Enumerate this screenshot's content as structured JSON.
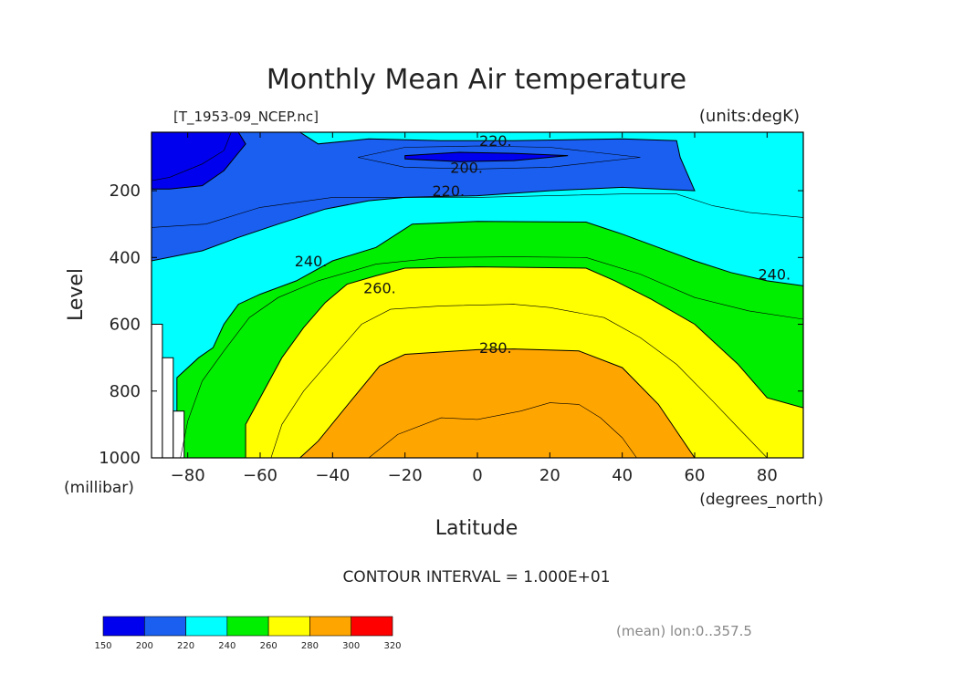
{
  "chart_data": {
    "type": "filled-contour",
    "title": "Monthly Mean Air temperature",
    "file_label": "[T_1953-09_NCEP.nc]",
    "units_label": "(units:degK)",
    "xlabel": "Latitude",
    "x_units": "(degrees_north)",
    "ylabel": "Level",
    "y_units": "(millibar)",
    "xlim": [
      -90,
      90
    ],
    "ylim": [
      1000,
      25
    ],
    "x_ticks": [
      -80,
      -60,
      -40,
      -20,
      0,
      20,
      40,
      60,
      80
    ],
    "x_tick_labels": [
      "−80",
      "−60",
      "−40",
      "−20",
      "0",
      "20",
      "40",
      "60",
      "80"
    ],
    "y_ticks": [
      200,
      400,
      600,
      800,
      1000
    ],
    "y_tick_labels": [
      "200",
      "400",
      "600",
      "800",
      "1000"
    ],
    "contour_interval_text": "CONTOUR INTERVAL = 1.000E+01",
    "footnote": "(mean) lon:0..357.5",
    "contour_labels": [
      {
        "text": "220.",
        "lat": 5,
        "level": 50
      },
      {
        "text": "200.",
        "lat": -3,
        "level": 130
      },
      {
        "text": "220.",
        "lat": -8,
        "level": 200
      },
      {
        "text": "240.",
        "lat": -46,
        "level": 410
      },
      {
        "text": "260.",
        "lat": -27,
        "level": 490
      },
      {
        "text": "280.",
        "lat": 5,
        "level": 670
      },
      {
        "text": "240.",
        "lat": 82,
        "level": 450
      }
    ],
    "colorbar": {
      "levels": [
        "150",
        "200",
        "220",
        "240",
        "260",
        "280",
        "300",
        "320"
      ],
      "colors": [
        "#0000ee",
        "#1a5ff0",
        "#00ffff",
        "#00ee00",
        "#ffff00",
        "#ffa500",
        "#ff0000"
      ]
    },
    "regions": [
      {
        "name": "orange-280-300",
        "color": "#ffa500",
        "outline": [
          [
            -49,
            1000
          ],
          [
            -44,
            950
          ],
          [
            -35,
            830
          ],
          [
            -27,
            725
          ],
          [
            -20,
            690
          ],
          [
            0,
            676
          ],
          [
            10,
            674
          ],
          [
            28,
            680
          ],
          [
            40,
            730
          ],
          [
            50,
            840
          ],
          [
            60,
            1000
          ]
        ]
      },
      {
        "name": "yellow-260-280",
        "color": "#ffff00",
        "outline": [
          [
            -64,
            1000
          ],
          [
            -64,
            900
          ],
          [
            -60,
            820
          ],
          [
            -54,
            700
          ],
          [
            -48,
            610
          ],
          [
            -42,
            535
          ],
          [
            -36,
            480
          ],
          [
            -28,
            455
          ],
          [
            -20,
            432
          ],
          [
            0,
            428
          ],
          [
            30,
            432
          ],
          [
            38,
            470
          ],
          [
            48,
            525
          ],
          [
            60,
            600
          ],
          [
            72,
            720
          ],
          [
            80,
            820
          ],
          [
            90,
            850
          ],
          [
            90,
            1000
          ]
        ]
      },
      {
        "name": "green-240-260",
        "color": "#00ee00",
        "outline": [
          [
            -83,
            1000
          ],
          [
            -83,
            760
          ],
          [
            -77,
            700
          ],
          [
            -73,
            670
          ],
          [
            -70,
            600
          ],
          [
            -66,
            540
          ],
          [
            -60,
            510
          ],
          [
            -50,
            470
          ],
          [
            -40,
            410
          ],
          [
            -28,
            370
          ],
          [
            -18,
            300
          ],
          [
            0,
            292
          ],
          [
            30,
            294
          ],
          [
            40,
            330
          ],
          [
            50,
            370
          ],
          [
            60,
            410
          ],
          [
            70,
            445
          ],
          [
            80,
            470
          ],
          [
            90,
            485
          ],
          [
            90,
            1000
          ]
        ]
      },
      {
        "name": "cyan-220-240",
        "color": "#00ffff",
        "outline": [
          [
            -90,
            25
          ],
          [
            90,
            25
          ],
          [
            90,
            1000
          ],
          [
            -90,
            1000
          ]
        ]
      },
      {
        "name": "blue-200-220",
        "color": "#1a5ff0",
        "outline": [
          [
            -90,
            25
          ],
          [
            -49,
            25
          ],
          [
            -44,
            60
          ],
          [
            -30,
            45
          ],
          [
            -10,
            50
          ],
          [
            10,
            50
          ],
          [
            40,
            45
          ],
          [
            55,
            50
          ],
          [
            56,
            100
          ],
          [
            60,
            200
          ],
          [
            40,
            190
          ],
          [
            20,
            200
          ],
          [
            0,
            215
          ],
          [
            -20,
            220
          ],
          [
            -30,
            230
          ],
          [
            -42,
            255
          ],
          [
            -55,
            300
          ],
          [
            -66,
            340
          ],
          [
            -76,
            380
          ],
          [
            -90,
            410
          ]
        ]
      },
      {
        "name": "deep-blue-below-200",
        "color": "#0000ee",
        "outline": [
          [
            -90,
            25
          ],
          [
            -66,
            25
          ],
          [
            -64,
            60
          ],
          [
            -70,
            140
          ],
          [
            -76,
            185
          ],
          [
            -85,
            195
          ],
          [
            -90,
            195
          ]
        ]
      },
      {
        "name": "deep-blue-core-below-200",
        "color": "#0000ee",
        "outline": [
          [
            -20,
            95
          ],
          [
            -5,
            85
          ],
          [
            10,
            88
          ],
          [
            25,
            95
          ],
          [
            10,
            110
          ],
          [
            -5,
            113
          ],
          [
            -20,
            105
          ]
        ]
      },
      {
        "name": "missing-data-1",
        "color": "#ffffff",
        "outline": [
          [
            -90,
            600
          ],
          [
            -87,
            600
          ],
          [
            -87,
            1000
          ],
          [
            -90,
            1000
          ]
        ]
      },
      {
        "name": "missing-data-2",
        "color": "#ffffff",
        "outline": [
          [
            -87,
            700
          ],
          [
            -84,
            700
          ],
          [
            -84,
            1000
          ],
          [
            -87,
            1000
          ]
        ]
      },
      {
        "name": "missing-data-3",
        "color": "#ffffff",
        "outline": [
          [
            -84,
            860
          ],
          [
            -81,
            860
          ],
          [
            -81,
            1000
          ],
          [
            -84,
            1000
          ]
        ]
      }
    ],
    "isolines": [
      {
        "name": "contour-210-west",
        "points": [
          [
            -90,
            170
          ],
          [
            -85,
            160
          ],
          [
            -76,
            120
          ],
          [
            -70,
            80
          ],
          [
            -68,
            25
          ]
        ]
      },
      {
        "name": "contour-210-jet",
        "points": [
          [
            -33,
            100
          ],
          [
            -20,
            70
          ],
          [
            0,
            66
          ],
          [
            20,
            70
          ],
          [
            45,
            100
          ],
          [
            20,
            130
          ],
          [
            0,
            135
          ],
          [
            -20,
            130
          ],
          [
            -33,
            100
          ]
        ]
      },
      {
        "name": "contour-230",
        "points": [
          [
            -90,
            310
          ],
          [
            -75,
            300
          ],
          [
            -60,
            250
          ],
          [
            -40,
            220
          ],
          [
            -20,
            220
          ],
          [
            0,
            220
          ],
          [
            20,
            215
          ],
          [
            40,
            210
          ],
          [
            55,
            210
          ],
          [
            65,
            245
          ],
          [
            75,
            265
          ],
          [
            90,
            280
          ]
        ]
      },
      {
        "name": "contour-250",
        "points": [
          [
            -82,
            1000
          ],
          [
            -80,
            890
          ],
          [
            -76,
            770
          ],
          [
            -70,
            680
          ],
          [
            -63,
            580
          ],
          [
            -55,
            520
          ],
          [
            -44,
            470
          ],
          [
            -28,
            420
          ],
          [
            -10,
            400
          ],
          [
            10,
            398
          ],
          [
            30,
            400
          ],
          [
            45,
            450
          ],
          [
            60,
            520
          ],
          [
            75,
            560
          ],
          [
            90,
            585
          ]
        ]
      },
      {
        "name": "contour-270",
        "points": [
          [
            -57,
            1000
          ],
          [
            -54,
            900
          ],
          [
            -48,
            800
          ],
          [
            -40,
            700
          ],
          [
            -32,
            600
          ],
          [
            -24,
            555
          ],
          [
            -10,
            545
          ],
          [
            10,
            540
          ],
          [
            20,
            550
          ],
          [
            35,
            580
          ],
          [
            45,
            640
          ],
          [
            55,
            720
          ],
          [
            65,
            830
          ],
          [
            72,
            910
          ],
          [
            80,
            1000
          ]
        ]
      },
      {
        "name": "contour-290",
        "points": [
          [
            -30,
            1000
          ],
          [
            -22,
            930
          ],
          [
            -10,
            880
          ],
          [
            0,
            885
          ],
          [
            12,
            860
          ],
          [
            20,
            835
          ],
          [
            28,
            840
          ],
          [
            34,
            880
          ],
          [
            40,
            940
          ],
          [
            44,
            1000
          ]
        ]
      }
    ]
  }
}
